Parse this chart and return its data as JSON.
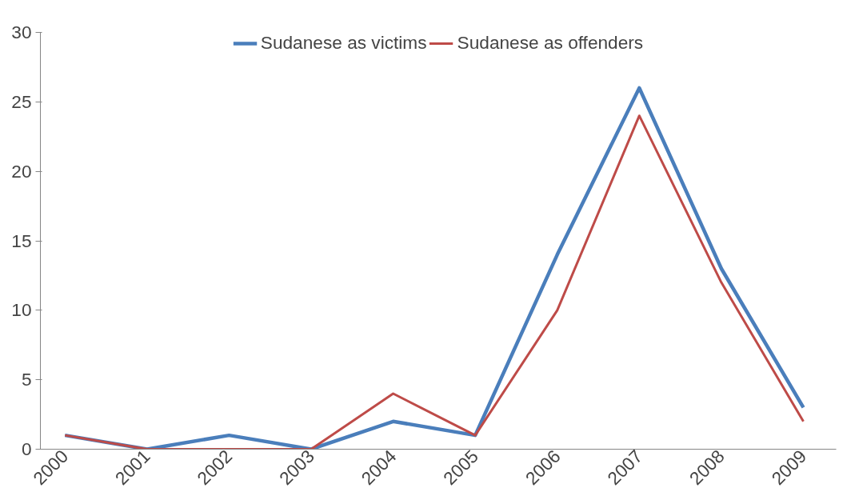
{
  "chart_data": {
    "type": "line",
    "categories": [
      "2000",
      "2001",
      "2002",
      "2003",
      "2004",
      "2005",
      "2006",
      "2007",
      "2008",
      "2009"
    ],
    "series": [
      {
        "name": "Sudanese as victims",
        "color": "#4a7ebb",
        "values": [
          1,
          0,
          1,
          0,
          2,
          1,
          14,
          26,
          13,
          3
        ]
      },
      {
        "name": "Sudanese as offenders",
        "color": "#be4b48",
        "values": [
          1,
          0,
          0,
          0,
          4,
          1,
          10,
          24,
          12,
          2
        ]
      }
    ],
    "ylim": [
      0,
      30
    ],
    "yticks": [
      0,
      5,
      10,
      15,
      20,
      25,
      30
    ],
    "grid": false,
    "legend": "top",
    "marker": "none",
    "line_style": "solid"
  }
}
